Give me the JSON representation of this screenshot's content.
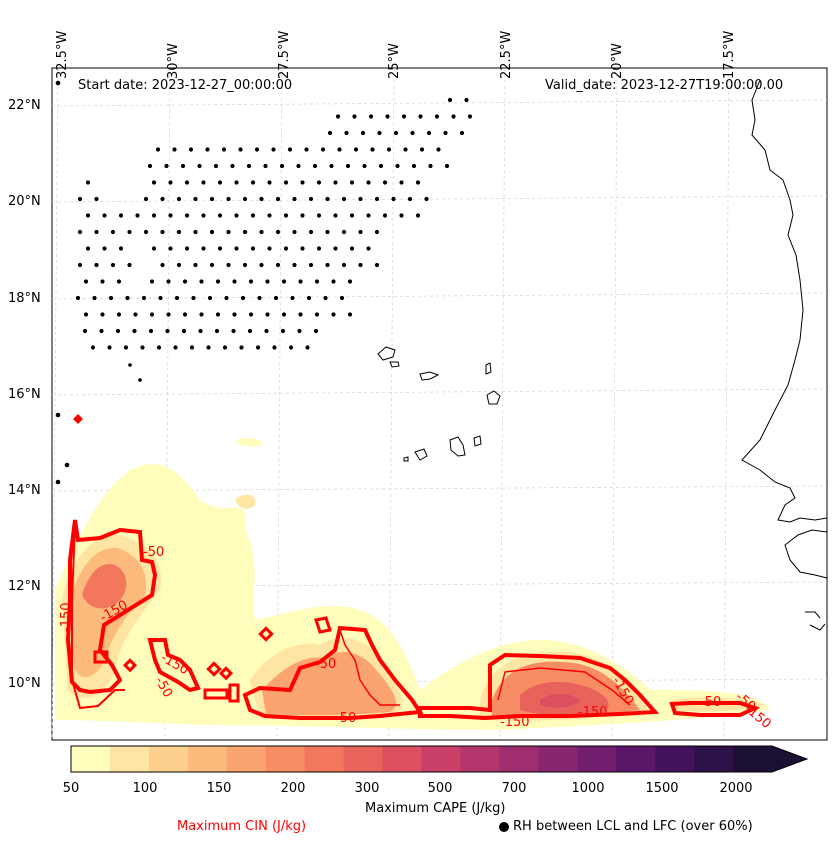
{
  "header": {
    "start_date": "Start date: 2023-12-27_00:00:00",
    "valid_date": "Valid_date: 2023-12-27T19:00:00.00"
  },
  "axes": {
    "longitude_labels": [
      "32.5°W",
      "30°W",
      "27.5°W",
      "25°W",
      "22.5°W",
      "20°W",
      "17.5°W"
    ],
    "latitude_labels": [
      "22°N",
      "20°N",
      "18°N",
      "16°N",
      "14°N",
      "12°N",
      "10°N"
    ]
  },
  "colorbar": {
    "ticks": [
      "50",
      "100",
      "150",
      "200",
      "300",
      "500",
      "700",
      "1000",
      "1500",
      "2000"
    ],
    "colors": [
      "#fffdbc",
      "#fee5a3",
      "#fdd08d",
      "#fcbb7d",
      "#fba470",
      "#f88d63",
      "#f3775d",
      "#e9635d",
      "#dc4f61",
      "#c93f68",
      "#b4366d",
      "#9e2e6f",
      "#882570",
      "#721d6e",
      "#5b1669",
      "#44125c",
      "#2d1149",
      "#1b1034"
    ],
    "label": "Maximum CAPE (J/kg)",
    "extend": "max"
  },
  "legend": {
    "cin_label": "Maximum CIN (J/kg)",
    "cin_color": "#ff0000",
    "rh_label": "RH between LCL and LFC (over 60%)",
    "rh_marker": "filled-circle"
  },
  "contour_labels": [
    "-50",
    "-150",
    "-150",
    "-50",
    "-150",
    "-50",
    "-50",
    "-150",
    "-150",
    "-150",
    "-50",
    "-50",
    "-150"
  ]
}
